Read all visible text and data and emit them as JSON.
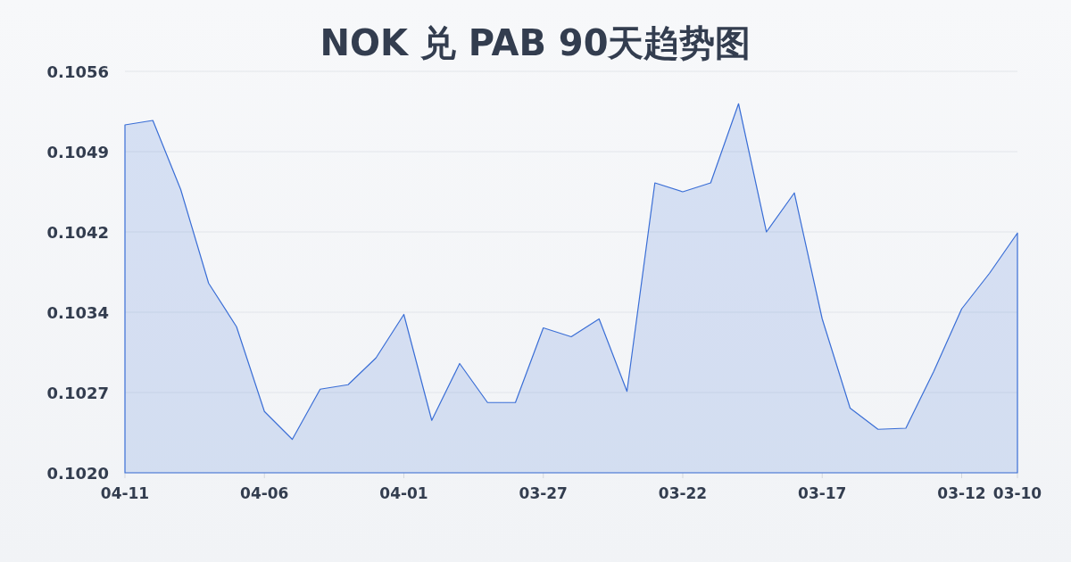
{
  "chart_data": {
    "type": "area",
    "title": "NOK 兑 PAB 90天趋势图",
    "categories": [
      "04-11",
      null,
      null,
      null,
      null,
      "04-06",
      null,
      null,
      null,
      null,
      "04-01",
      null,
      null,
      null,
      null,
      "03-27",
      null,
      null,
      null,
      null,
      "03-22",
      null,
      null,
      null,
      null,
      "03-17",
      null,
      null,
      null,
      null,
      "03-12",
      null,
      "03-10"
    ],
    "series": [
      {
        "color": "#3a6ed6",
        "values": [
          0.10512,
          0.10516,
          0.10454,
          0.1037,
          0.10331,
          0.10255,
          0.1023,
          0.10275,
          0.10279,
          0.10303,
          0.10342,
          0.10247,
          0.10298,
          0.10263,
          0.10263,
          0.1033,
          0.10322,
          0.10338,
          0.10273,
          0.1046,
          0.10452,
          0.1046,
          0.10531,
          0.10416,
          0.10451,
          0.10338,
          0.10258,
          0.10239,
          0.1024,
          0.10291,
          0.10347,
          0.10379,
          0.10415
        ]
      }
    ],
    "ylim": [
      0.102,
      0.1056
    ],
    "yticks": [
      {
        "value": 0.102,
        "label": "0.1020"
      },
      {
        "value": 0.10272,
        "label": "0.1027"
      },
      {
        "value": 0.10344,
        "label": "0.1034"
      },
      {
        "value": 0.10416,
        "label": "0.1042"
      },
      {
        "value": 0.10488,
        "label": "0.1049"
      },
      {
        "value": 0.1056,
        "label": "0.1056"
      }
    ],
    "grid": "y"
  }
}
